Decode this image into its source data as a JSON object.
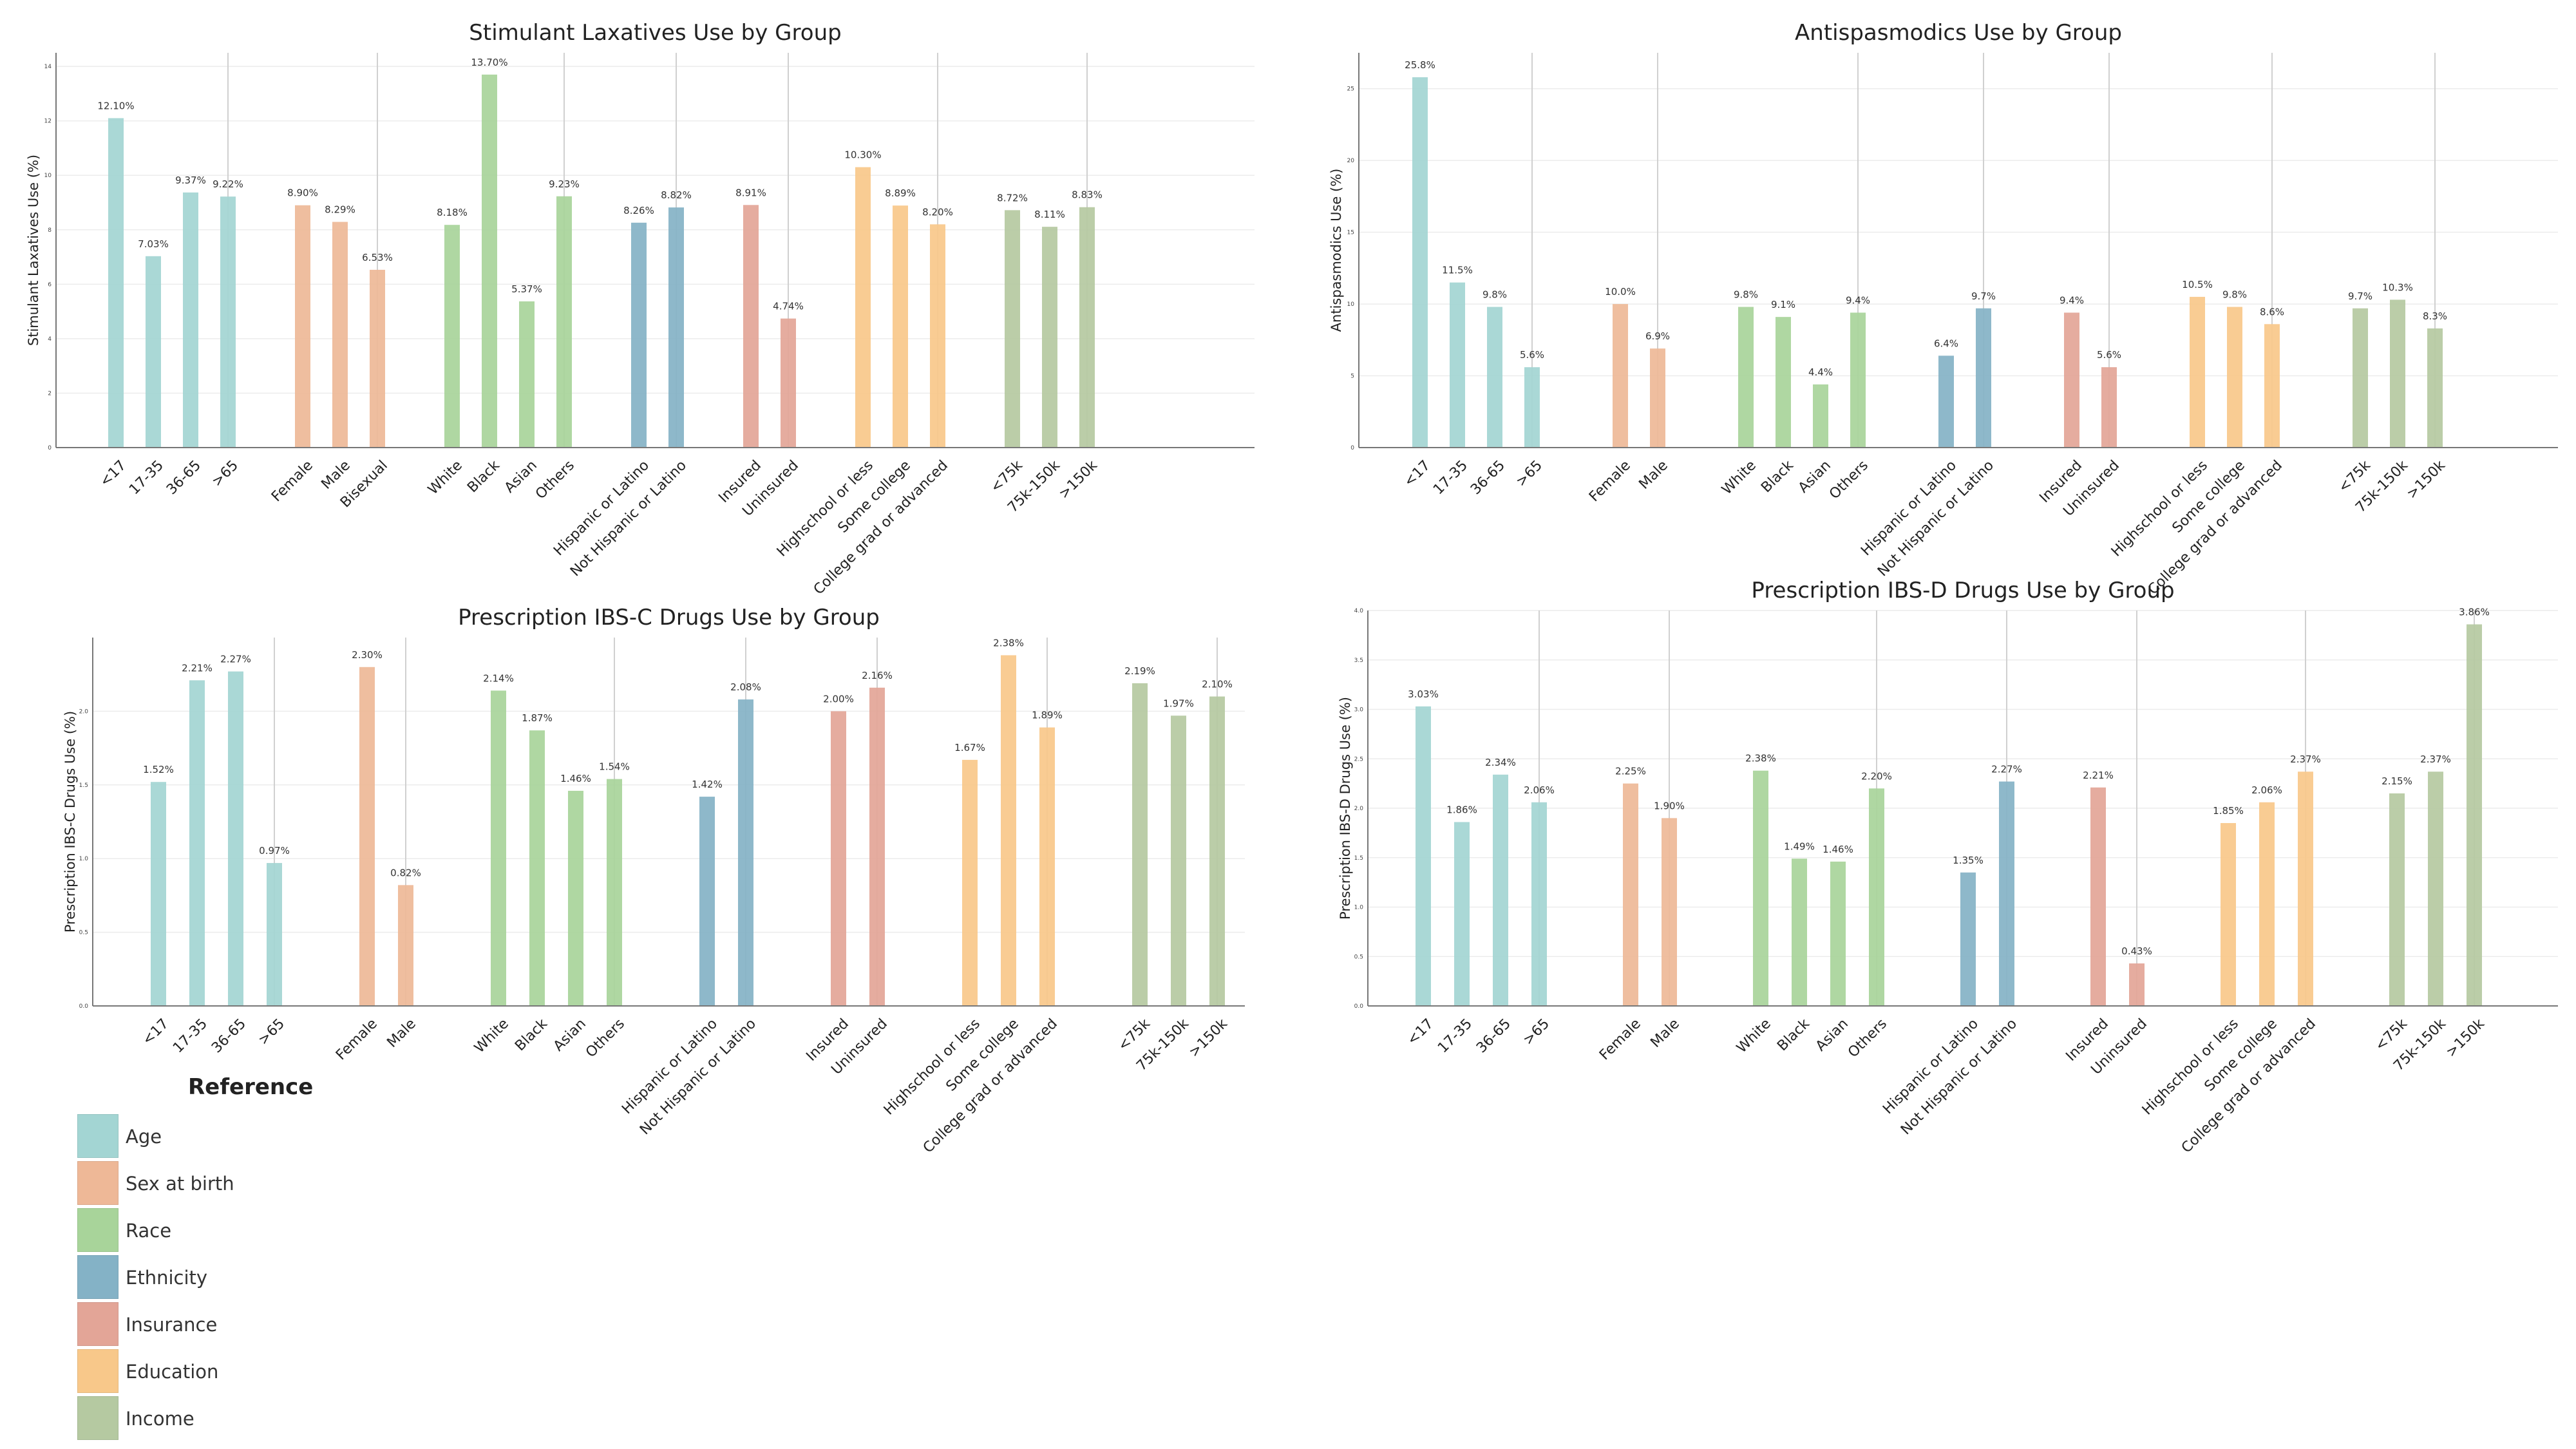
{
  "colors": {
    "Age": "#a3d5d3",
    "Sex at birth": "#eeb897",
    "Race": "#a8d49a",
    "Ethnicity": "#84b2c6",
    "Insurance": "#e3a597",
    "Education": "#f8c88a",
    "Income": "#b5c9a1"
  },
  "legend": {
    "title": "Reference",
    "items": [
      "Age",
      "Sex at birth",
      "Race",
      "Ethnicity",
      "Insurance",
      "Education",
      "Income"
    ]
  },
  "chart_data": [
    {
      "type": "bar",
      "title": "Stimulant Laxatives Use by Group",
      "ylabel": "Stimulant Laxatives Use (%)",
      "ylim": [
        0,
        14.5
      ],
      "yticks": [
        "0",
        "2",
        "4",
        "6",
        "8",
        "10",
        "12",
        "14"
      ],
      "decimals": 2,
      "groups": [
        {
          "name": "Age",
          "categories": [
            "<17",
            "17-35",
            "36-65",
            ">65"
          ],
          "values": [
            12.1,
            7.03,
            9.37,
            9.22
          ]
        },
        {
          "name": "Sex at birth",
          "categories": [
            "Female",
            "Male",
            "Bisexual"
          ],
          "values": [
            8.9,
            8.29,
            6.53
          ]
        },
        {
          "name": "Race",
          "categories": [
            "White",
            "Black",
            "Asian",
            "Others"
          ],
          "values": [
            8.18,
            13.7,
            5.37,
            9.23
          ]
        },
        {
          "name": "Ethnicity",
          "categories": [
            "Hispanic or Latino",
            "Not Hispanic or Latino"
          ],
          "values": [
            8.26,
            8.82
          ]
        },
        {
          "name": "Insurance",
          "categories": [
            "Insured",
            "Uninsured"
          ],
          "values": [
            8.91,
            4.74
          ]
        },
        {
          "name": "Education",
          "categories": [
            "Highschool or less",
            "Some college",
            "College grad or advanced"
          ],
          "values": [
            10.3,
            8.89,
            8.2
          ]
        },
        {
          "name": "Income",
          "categories": [
            "<75k",
            "75k-150k",
            ">150k"
          ],
          "values": [
            8.72,
            8.11,
            8.83
          ]
        }
      ]
    },
    {
      "type": "bar",
      "title": "Antispasmodics Use by Group",
      "ylabel": "Antispasmodics Use (%)",
      "ylim": [
        0,
        27.5
      ],
      "yticks": [
        "0",
        "5",
        "10",
        "15",
        "20",
        "25"
      ],
      "decimals": 1,
      "groups": [
        {
          "name": "Age",
          "categories": [
            "<17",
            "17-35",
            "36-65",
            ">65"
          ],
          "values": [
            25.8,
            11.5,
            9.8,
            5.6
          ]
        },
        {
          "name": "Sex at birth",
          "categories": [
            "Female",
            "Male"
          ],
          "values": [
            10.0,
            6.9
          ]
        },
        {
          "name": "Race",
          "categories": [
            "White",
            "Black",
            "Asian",
            "Others"
          ],
          "values": [
            9.8,
            9.1,
            4.4,
            9.4
          ]
        },
        {
          "name": "Ethnicity",
          "categories": [
            "Hispanic or Latino",
            "Not Hispanic or Latino"
          ],
          "values": [
            6.4,
            9.7
          ]
        },
        {
          "name": "Insurance",
          "categories": [
            "Insured",
            "Uninsured"
          ],
          "values": [
            9.4,
            5.6
          ]
        },
        {
          "name": "Education",
          "categories": [
            "Highschool or less",
            "Some college",
            "College grad or advanced"
          ],
          "values": [
            10.5,
            9.8,
            8.6
          ]
        },
        {
          "name": "Income",
          "categories": [
            "<75k",
            "75k-150k",
            ">150k"
          ],
          "values": [
            9.7,
            10.3,
            8.3
          ]
        }
      ]
    },
    {
      "type": "bar",
      "title": "Prescription IBS-C Drugs Use by Group",
      "ylabel": "Prescription IBS-C Drugs Use (%)",
      "ylim": [
        0,
        2.5
      ],
      "yticks": [
        "0.0",
        "0.5",
        "1.0",
        "1.5",
        "2.0"
      ],
      "decimals": 2,
      "groups": [
        {
          "name": "Age",
          "categories": [
            "<17",
            "17-35",
            "36-65",
            ">65"
          ],
          "values": [
            1.52,
            2.21,
            2.27,
            0.97
          ]
        },
        {
          "name": "Sex at birth",
          "categories": [
            "Female",
            "Male"
          ],
          "values": [
            2.3,
            0.82
          ]
        },
        {
          "name": "Race",
          "categories": [
            "White",
            "Black",
            "Asian",
            "Others"
          ],
          "values": [
            2.14,
            1.87,
            1.46,
            1.54
          ]
        },
        {
          "name": "Ethnicity",
          "categories": [
            "Hispanic or Latino",
            "Not Hispanic or Latino"
          ],
          "values": [
            1.42,
            2.08
          ]
        },
        {
          "name": "Insurance",
          "categories": [
            "Insured",
            "Uninsured"
          ],
          "values": [
            2.0,
            2.16
          ]
        },
        {
          "name": "Education",
          "categories": [
            "Highschool or less",
            "Some college",
            "College grad or advanced"
          ],
          "values": [
            1.67,
            2.38,
            1.89
          ]
        },
        {
          "name": "Income",
          "categories": [
            "<75k",
            "75k-150k",
            ">150k"
          ],
          "values": [
            2.19,
            1.97,
            2.1
          ]
        }
      ]
    },
    {
      "type": "bar",
      "title": "Prescription IBS-D Drugs Use by Group",
      "ylabel": "Prescription IBS-D Drugs Use (%)",
      "ylim": [
        0,
        4.0
      ],
      "yticks": [
        "0.0",
        "0.5",
        "1.0",
        "1.5",
        "2.0",
        "2.5",
        "3.0",
        "3.5",
        "4.0"
      ],
      "decimals": 2,
      "groups": [
        {
          "name": "Age",
          "categories": [
            "<17",
            "17-35",
            "36-65",
            ">65"
          ],
          "values": [
            3.03,
            1.86,
            2.34,
            2.06
          ]
        },
        {
          "name": "Sex at birth",
          "categories": [
            "Female",
            "Male"
          ],
          "values": [
            2.25,
            1.9
          ]
        },
        {
          "name": "Race",
          "categories": [
            "White",
            "Black",
            "Asian",
            "Others"
          ],
          "values": [
            2.38,
            1.49,
            1.46,
            2.2
          ]
        },
        {
          "name": "Ethnicity",
          "categories": [
            "Hispanic or Latino",
            "Not Hispanic or Latino"
          ],
          "values": [
            1.35,
            2.27
          ]
        },
        {
          "name": "Insurance",
          "categories": [
            "Insured",
            "Uninsured"
          ],
          "values": [
            2.21,
            0.43
          ]
        },
        {
          "name": "Education",
          "categories": [
            "Highschool or less",
            "Some college",
            "College grad or advanced"
          ],
          "values": [
            1.85,
            2.06,
            2.37
          ]
        },
        {
          "name": "Income",
          "categories": [
            "<75k",
            "75k-150k",
            ">150k"
          ],
          "values": [
            2.15,
            2.37,
            3.86
          ]
        }
      ]
    }
  ]
}
